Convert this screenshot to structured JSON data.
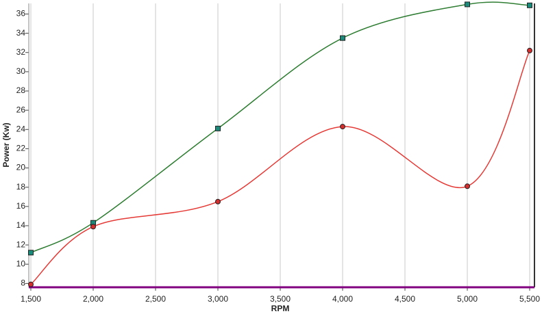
{
  "chart_data": {
    "type": "line",
    "x_label": "RPM",
    "y_label": "Power (Kw)",
    "x": [
      1500,
      2000,
      3000,
      4000,
      5000,
      5500
    ],
    "series": [
      {
        "color": "#2e7d32",
        "marker": "square",
        "marker_color": "#1a8a7a",
        "values": [
          11.2,
          14.3,
          24.1,
          33.5,
          37.0,
          36.9
        ]
      },
      {
        "color": "#e53935",
        "marker": "circle",
        "marker_color": "#d32f2f",
        "values": [
          7.9,
          13.9,
          16.5,
          24.3,
          18.1,
          32.2
        ]
      }
    ],
    "xlim": [
      1500,
      5500
    ],
    "xticks": [
      {
        "value": 1500,
        "label": "1,500"
      },
      {
        "value": 2000,
        "label": "2,000"
      },
      {
        "value": 2500,
        "label": "2,500"
      },
      {
        "value": 3000,
        "label": "3,000"
      },
      {
        "value": 3500,
        "label": "3,500"
      },
      {
        "value": 4000,
        "label": "4,000"
      },
      {
        "value": 4500,
        "label": "4,500"
      },
      {
        "value": 5000,
        "label": "5,000"
      },
      {
        "value": 5500,
        "label": "5,500"
      }
    ],
    "ylim": [
      7.6,
      37.1
    ],
    "yticks": [
      8,
      10,
      12,
      14,
      16,
      18,
      20,
      22,
      24,
      26,
      28,
      30,
      32,
      34,
      36
    ],
    "x_grid": true,
    "smooth": true
  }
}
